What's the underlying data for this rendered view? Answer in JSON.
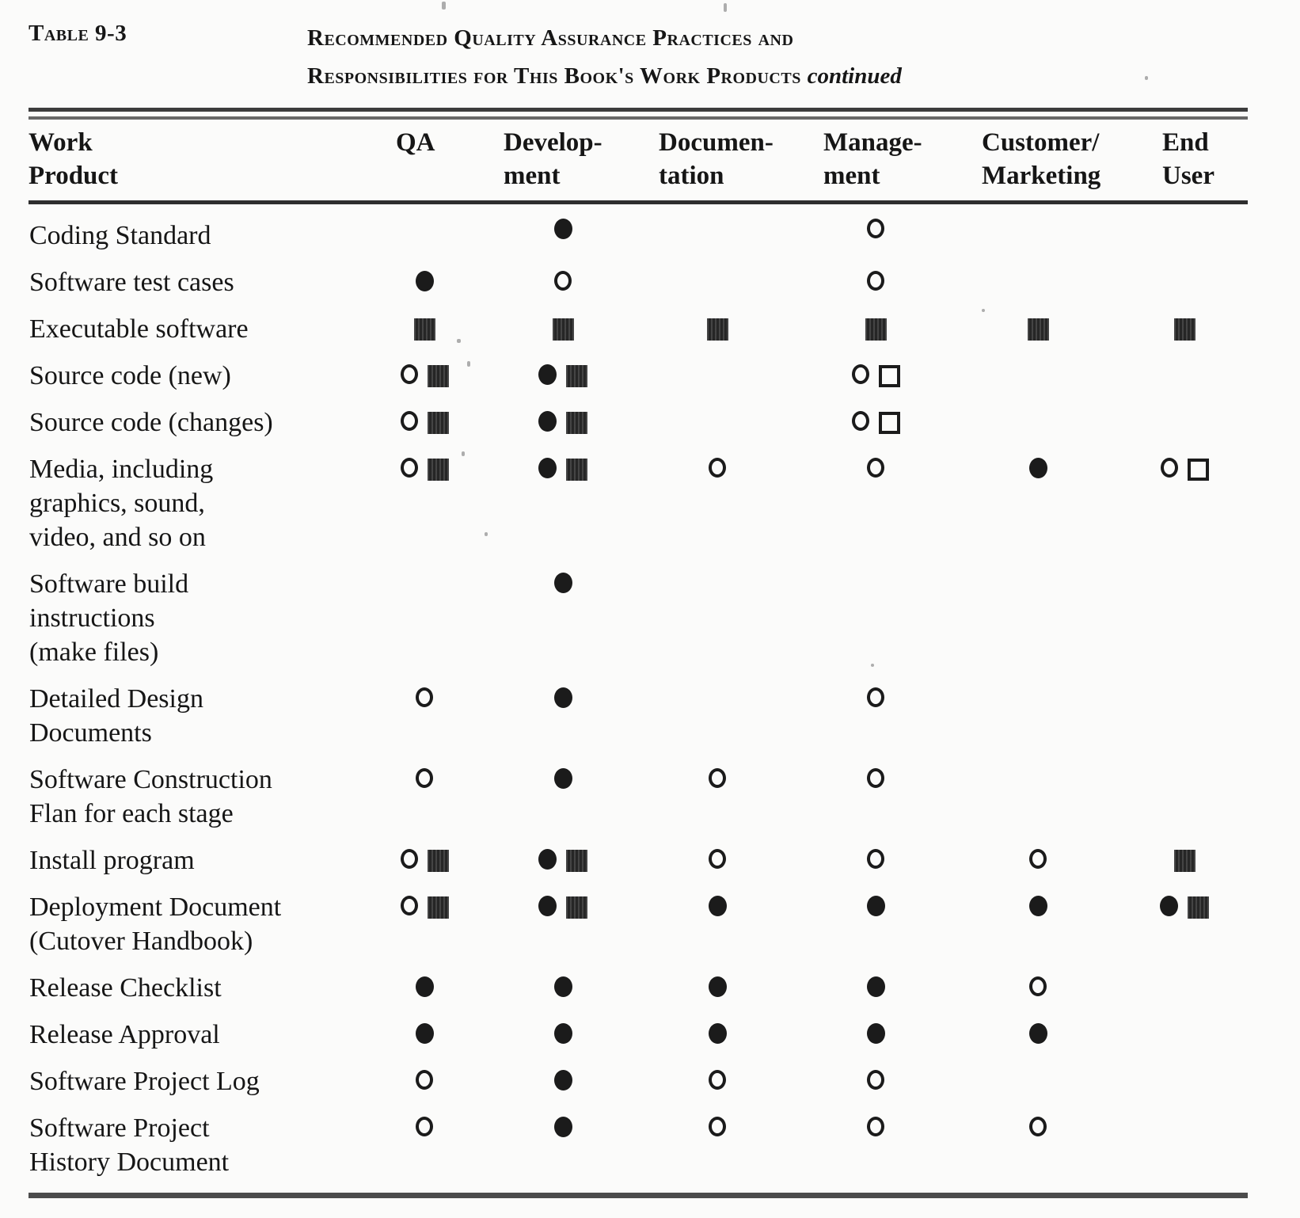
{
  "caption": {
    "label": "Table 9-3",
    "title_line1": "Recommended Quality Assurance Practices and",
    "title_line2": "Responsibilities for This Book's Work Products",
    "continued": "continued"
  },
  "symbol_names": {
    "fc": "filled-circle-icon",
    "oc": "open-circle-icon",
    "fs": "filled-square-icon",
    "os": "open-square-icon"
  },
  "table": {
    "columns": [
      "Work\nProduct",
      "QA",
      "Develop-\nment",
      "Documen-\ntation",
      "Manage-\nment",
      "Customer/\nMarketing",
      "End\nUser"
    ],
    "column_keys": [
      "work-product",
      "qa",
      "development",
      "documentation",
      "management",
      "customer-marketing",
      "end-user"
    ],
    "rows": [
      {
        "product": "Coding Standard",
        "cells": [
          [],
          [
            "fc"
          ],
          [],
          [
            "oc"
          ],
          [],
          []
        ]
      },
      {
        "product": "Software test cases",
        "cells": [
          [
            "fc"
          ],
          [
            "oc"
          ],
          [],
          [
            "oc"
          ],
          [],
          []
        ]
      },
      {
        "product": "Executable software",
        "cells": [
          [
            "fs"
          ],
          [
            "fs"
          ],
          [
            "fs"
          ],
          [
            "fs"
          ],
          [
            "fs"
          ],
          [
            "fs"
          ]
        ]
      },
      {
        "product": "Source code (new)",
        "cells": [
          [
            "oc",
            "fs"
          ],
          [
            "fc",
            "fs"
          ],
          [],
          [
            "oc",
            "os"
          ],
          [],
          []
        ]
      },
      {
        "product": "Source code (changes)",
        "cells": [
          [
            "oc",
            "fs"
          ],
          [
            "fc",
            "fs"
          ],
          [],
          [
            "oc",
            "os"
          ],
          [],
          []
        ]
      },
      {
        "product": "Media, including\ngraphics, sound,\nvideo, and so on",
        "cells": [
          [
            "oc",
            "fs"
          ],
          [
            "fc",
            "fs"
          ],
          [
            "oc"
          ],
          [
            "oc"
          ],
          [
            "fc"
          ],
          [
            "oc",
            "os"
          ]
        ]
      },
      {
        "product": "Software build\ninstructions\n(make files)",
        "cells": [
          [],
          [
            "fc"
          ],
          [],
          [],
          [],
          []
        ]
      },
      {
        "product": "Detailed Design\nDocuments",
        "cells": [
          [
            "oc"
          ],
          [
            "fc"
          ],
          [],
          [
            "oc"
          ],
          [],
          []
        ]
      },
      {
        "product": "Software Construction\nFlan for each stage",
        "cells": [
          [
            "oc"
          ],
          [
            "fc"
          ],
          [
            "oc"
          ],
          [
            "oc"
          ],
          [],
          []
        ]
      },
      {
        "product": "Install program",
        "cells": [
          [
            "oc",
            "fs"
          ],
          [
            "fc",
            "fs"
          ],
          [
            "oc"
          ],
          [
            "oc"
          ],
          [
            "oc"
          ],
          [
            "fs"
          ]
        ]
      },
      {
        "product": "Deployment Document\n(Cutover Handbook)",
        "cells": [
          [
            "oc",
            "fs"
          ],
          [
            "fc",
            "fs"
          ],
          [
            "fc"
          ],
          [
            "fc"
          ],
          [
            "fc"
          ],
          [
            "fc",
            "fs"
          ]
        ]
      },
      {
        "product": "Release Checklist",
        "cells": [
          [
            "fc"
          ],
          [
            "fc"
          ],
          [
            "fc"
          ],
          [
            "fc"
          ],
          [
            "oc"
          ],
          []
        ]
      },
      {
        "product": "Release Approval",
        "cells": [
          [
            "fc"
          ],
          [
            "fc"
          ],
          [
            "fc"
          ],
          [
            "fc"
          ],
          [
            "fc"
          ],
          []
        ]
      },
      {
        "product": "Software Project Log",
        "cells": [
          [
            "oc"
          ],
          [
            "fc"
          ],
          [
            "oc"
          ],
          [
            "oc"
          ],
          [],
          []
        ]
      },
      {
        "product": "Software Project\nHistory Document",
        "cells": [
          [
            "oc"
          ],
          [
            "fc"
          ],
          [
            "oc"
          ],
          [
            "oc"
          ],
          [
            "oc"
          ],
          []
        ]
      }
    ]
  },
  "colors": {
    "ink": "#161616",
    "paper": "#fbfbfa",
    "square_fill": "#262626",
    "rule": "#3c3c3c"
  }
}
